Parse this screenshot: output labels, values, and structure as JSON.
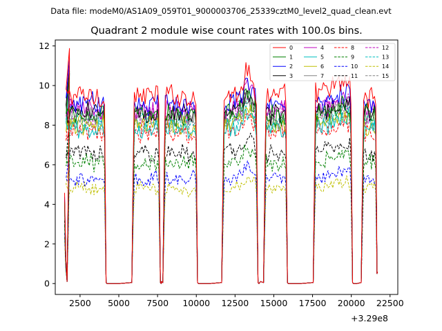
{
  "chart_data": {
    "type": "line",
    "suptitle": "Data file: modeM0/AS1A09_059T01_9000003706_25339cztM0_level2_quad_clean.evt",
    "title": "Quadrant 2 module wise count rates with 100.0s bins.",
    "xlabel": "",
    "ylabel": "",
    "x_offset_label": "+3.29e8",
    "xlim": [
      900,
      23000
    ],
    "ylim": [
      -0.55,
      12.3
    ],
    "xticks": [
      2500,
      5000,
      7500,
      10000,
      12500,
      15000,
      17500,
      20000,
      22500
    ],
    "yticks": [
      0,
      2,
      4,
      6,
      8,
      10,
      12
    ],
    "legend": {
      "location": "top-right",
      "columns": 4
    },
    "segments": [
      {
        "start": 1500,
        "end": 4100
      },
      {
        "start": 5900,
        "end": 7600
      },
      {
        "start": 7900,
        "end": 10000
      },
      {
        "start": 11700,
        "end": 13900
      },
      {
        "start": 14400,
        "end": 15800
      },
      {
        "start": 17600,
        "end": 20000
      },
      {
        "start": 20700,
        "end": 21600
      }
    ],
    "series": [
      {
        "name": "0",
        "color": "#ff0000",
        "style": "solid",
        "mean": 9.5
      },
      {
        "name": "1",
        "color": "#008000",
        "style": "solid",
        "mean": 8.5
      },
      {
        "name": "2",
        "color": "#0000ff",
        "style": "solid",
        "mean": 9.1
      },
      {
        "name": "3",
        "color": "#000000",
        "style": "solid",
        "mean": 8.6
      },
      {
        "name": "4",
        "color": "#bf00bf",
        "style": "solid",
        "mean": 8.8
      },
      {
        "name": "5",
        "color": "#00bfbf",
        "style": "solid",
        "mean": 7.8
      },
      {
        "name": "6",
        "color": "#bfbf00",
        "style": "solid",
        "mean": 8.0
      },
      {
        "name": "7",
        "color": "#808080",
        "style": "solid",
        "mean": 8.3
      },
      {
        "name": "8",
        "color": "#ff0000",
        "style": "dashed",
        "mean": 7.6
      },
      {
        "name": "9",
        "color": "#008000",
        "style": "dashed",
        "mean": 6.1
      },
      {
        "name": "10",
        "color": "#0000ff",
        "style": "dashed",
        "mean": 5.3
      },
      {
        "name": "11",
        "color": "#000000",
        "style": "dashed",
        "mean": 6.6
      },
      {
        "name": "12",
        "color": "#bf00bf",
        "style": "dashed",
        "mean": 8.5
      },
      {
        "name": "13",
        "color": "#00bfbf",
        "style": "dashed",
        "mean": 8.2
      },
      {
        "name": "14",
        "color": "#bfbf00",
        "style": "dashed",
        "mean": 4.8
      },
      {
        "name": "15",
        "color": "#808080",
        "style": "dashed",
        "mean": 8.0
      }
    ]
  }
}
